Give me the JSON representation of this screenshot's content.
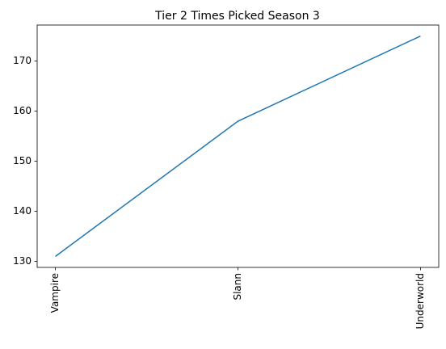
{
  "chart_data": {
    "type": "line",
    "title": "Tier 2 Times Picked Season 3",
    "categories": [
      "Vampire",
      "Slann",
      "Underworld"
    ],
    "values": [
      131,
      158,
      175
    ],
    "color": "#1f77b4",
    "ylim": [
      128.8,
      177.2
    ],
    "yticks": [
      130,
      140,
      150,
      160,
      170
    ],
    "grid": false
  }
}
